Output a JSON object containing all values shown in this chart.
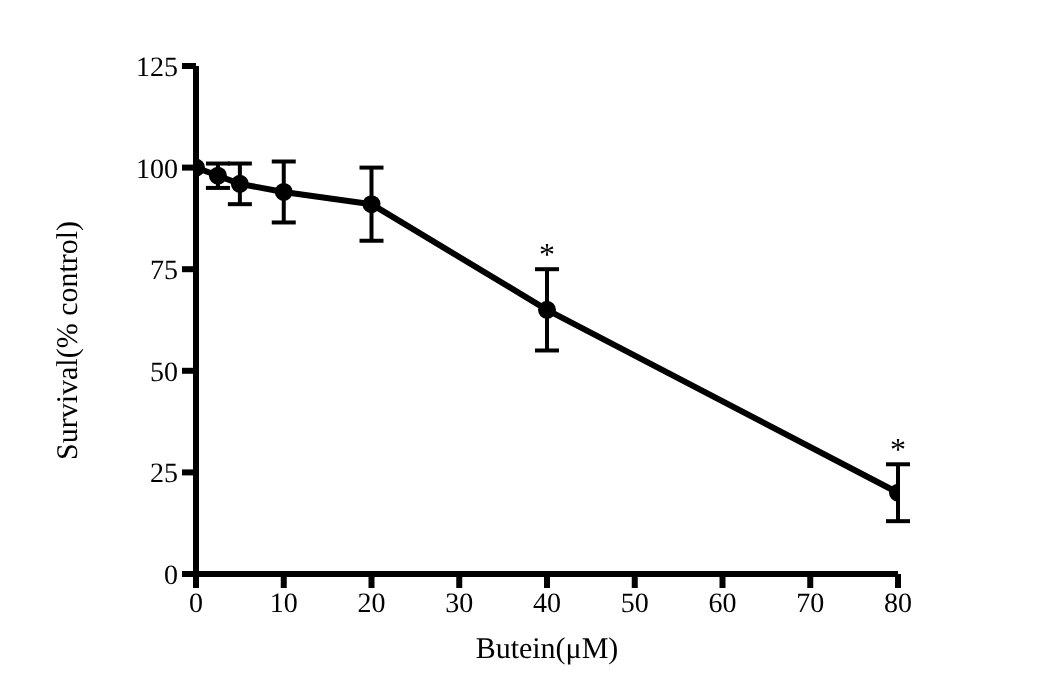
{
  "chart_data": {
    "type": "line",
    "xlabel": "Butein(μM)",
    "ylabel": "Survival(% control)",
    "x": [
      0,
      2.5,
      5,
      10,
      20,
      40,
      80
    ],
    "series": [
      {
        "color": "#000000",
        "values": [
          100,
          98,
          96,
          94,
          91,
          65,
          20
        ],
        "errors": [
          null,
          3,
          5,
          7.5,
          9,
          10,
          7
        ]
      }
    ],
    "xlim": [
      0,
      80
    ],
    "xticks": [
      0,
      10,
      20,
      30,
      40,
      50,
      60,
      70,
      80
    ],
    "ylim": [
      0,
      125
    ],
    "yticks": [
      0,
      25,
      50,
      75,
      100,
      125
    ],
    "marker": "circle",
    "line_style": "solid",
    "grid": false,
    "annotations": [
      {
        "text": "*",
        "x": 40,
        "y": 65
      },
      {
        "text": "*",
        "x": 80,
        "y": 20
      }
    ]
  }
}
